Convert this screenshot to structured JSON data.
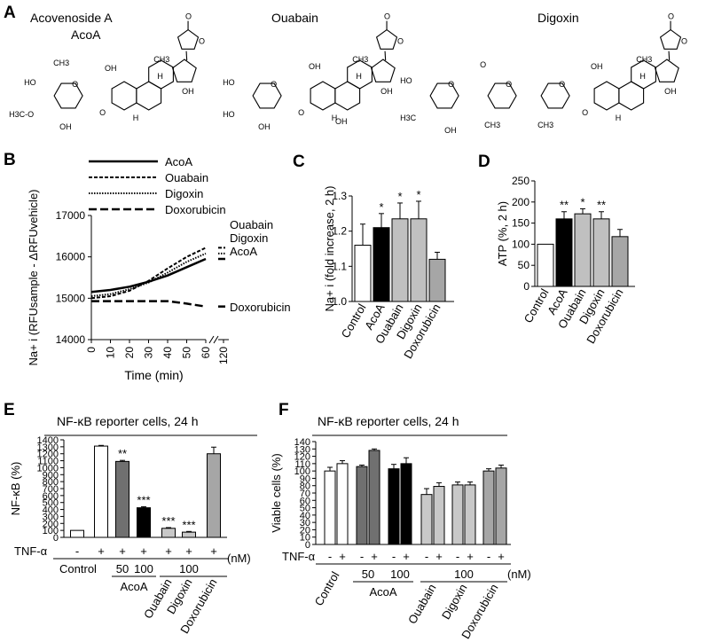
{
  "panels": {
    "A": {
      "label": "A",
      "compounds": [
        {
          "name": "Acovenoside A",
          "abbr": "AcoA"
        },
        {
          "name": "Ouabain"
        },
        {
          "name": "Digoxin"
        }
      ],
      "atom_labels": [
        "O",
        "OH",
        "H",
        "HO",
        "H3C",
        "CH3",
        "H3C-O"
      ]
    },
    "B": {
      "label": "B",
      "legend": [
        "AcoA",
        "Ouabain",
        "Digoxin",
        "Doxorubicin"
      ],
      "end_labels": [
        "Ouabain",
        "Digoxin",
        "AcoA",
        "Doxorubicin"
      ]
    },
    "C": {
      "label": "C"
    },
    "D": {
      "label": "D"
    },
    "E": {
      "label": "E",
      "banner": "NF-κB reporter cells, 24 h",
      "row_label": "TNF-α",
      "tnf_signs": [
        "-",
        "+",
        "+",
        "+",
        "+",
        "+",
        "+"
      ],
      "unit": "(nM)",
      "group_labels": [
        "Control",
        "AcoA",
        "Ouabain",
        "Digoxin",
        "Doxorubicin"
      ],
      "doses": [
        "50",
        "100",
        "100"
      ]
    },
    "F": {
      "label": "F",
      "banner": "NF-κB reporter cells, 24 h",
      "row_label": "TNF-α",
      "tnf_signs": [
        "-",
        "+",
        "-",
        "+",
        "-",
        "+",
        "-",
        "+",
        "-",
        "+",
        "-",
        "+"
      ],
      "unit": "(nM)",
      "group_labels": [
        "Control",
        "AcoA",
        "Ouabain",
        "Digoxin",
        "Doxorubicin"
      ],
      "doses": [
        "50",
        "100",
        "100"
      ]
    }
  },
  "chart_data": [
    {
      "panel": "B",
      "type": "line",
      "xlabel": "Time (min)",
      "ylabel": "Na+ i (RFUsample - ΔRFUvehicle)",
      "x_ticks": [
        "0",
        "10",
        "20",
        "30",
        "40",
        "50",
        "60",
        "120"
      ],
      "y_ticks": [
        14000,
        15000,
        16000,
        17000
      ],
      "ylim": [
        14000,
        17000
      ],
      "x": [
        0,
        10,
        20,
        30,
        40,
        50,
        60
      ],
      "series": [
        {
          "name": "AcoA",
          "style": "solid",
          "values": [
            15150,
            15200,
            15280,
            15400,
            15550,
            15750,
            15950
          ]
        },
        {
          "name": "Ouabain",
          "style": "dashed",
          "values": [
            15000,
            15050,
            15180,
            15420,
            15720,
            16000,
            16220
          ]
        },
        {
          "name": "Digoxin",
          "style": "dotted",
          "values": [
            15050,
            15100,
            15220,
            15380,
            15620,
            15880,
            16080
          ]
        },
        {
          "name": "Doxorubicin",
          "style": "longdash",
          "values": [
            14930,
            14930,
            14930,
            14930,
            14930,
            14870,
            14800
          ]
        }
      ]
    },
    {
      "panel": "C",
      "type": "bar",
      "ylabel": "Na+ i (fold increase, 2 h)",
      "categories": [
        "Control",
        "AcoA",
        "Ouabain",
        "Digoxin",
        "Doxorubicin"
      ],
      "values": [
        1.16,
        1.21,
        1.235,
        1.235,
        1.12
      ],
      "errors": [
        0.06,
        0.04,
        0.045,
        0.05,
        0.02
      ],
      "colors": [
        "#ffffff",
        "#000000",
        "#c0c0c0",
        "#c0c0c0",
        "#a6a6a6"
      ],
      "significance": [
        "",
        "*",
        "*",
        "*",
        ""
      ],
      "ylim": [
        1.0,
        1.3
      ],
      "y_ticks": [
        "1.0",
        "1.1",
        "1.2",
        "1.3"
      ]
    },
    {
      "panel": "D",
      "type": "bar",
      "ylabel": "ATP (%, 2 h)",
      "categories": [
        "Control",
        "AcoA",
        "Ouabain",
        "Digoxin",
        "Doxorubicin"
      ],
      "values": [
        100,
        160,
        172,
        160,
        118
      ],
      "errors": [
        0,
        17,
        12,
        17,
        17
      ],
      "colors": [
        "#ffffff",
        "#000000",
        "#c0c0c0",
        "#c0c0c0",
        "#a6a6a6"
      ],
      "significance": [
        "",
        "**",
        "*",
        "**",
        ""
      ],
      "ylim": [
        0,
        250
      ],
      "y_ticks": [
        "0",
        "50",
        "100",
        "150",
        "200",
        "250"
      ]
    },
    {
      "panel": "E",
      "type": "bar",
      "ylabel": "NF-κB (%)",
      "values": [
        100,
        1310,
        1090,
        425,
        130,
        75,
        1200
      ],
      "errors": [
        0,
        10,
        15,
        15,
        10,
        10,
        95
      ],
      "colors": [
        "#ffffff",
        "#ffffff",
        "#707070",
        "#000000",
        "#c8c8c8",
        "#c8c8c8",
        "#a6a6a6"
      ],
      "significance": [
        "",
        "",
        "**",
        "***",
        "***",
        "***",
        ""
      ],
      "ylim": [
        0,
        1400
      ],
      "y_ticks": [
        "0",
        "100",
        "200",
        "300",
        "400",
        "500",
        "600",
        "700",
        "800",
        "900",
        "1000",
        "1100",
        "1200",
        "1300",
        "1400"
      ]
    },
    {
      "panel": "F",
      "type": "bar",
      "ylabel": "Viable cells (%)",
      "values": [
        100,
        110,
        106,
        128,
        103,
        110,
        68,
        79,
        81,
        81,
        100,
        104
      ],
      "errors": [
        5,
        4,
        2,
        2,
        6,
        8,
        8,
        5,
        4,
        4,
        3,
        4
      ],
      "colors": [
        "#ffffff",
        "#ffffff",
        "#707070",
        "#707070",
        "#000000",
        "#000000",
        "#c8c8c8",
        "#c8c8c8",
        "#c8c8c8",
        "#c8c8c8",
        "#a6a6a6",
        "#a6a6a6"
      ],
      "ylim": [
        0,
        140
      ],
      "y_ticks": [
        "0",
        "10",
        "20",
        "30",
        "40",
        "50",
        "60",
        "70",
        "80",
        "90",
        "100",
        "110",
        "120",
        "130",
        "140"
      ]
    }
  ]
}
